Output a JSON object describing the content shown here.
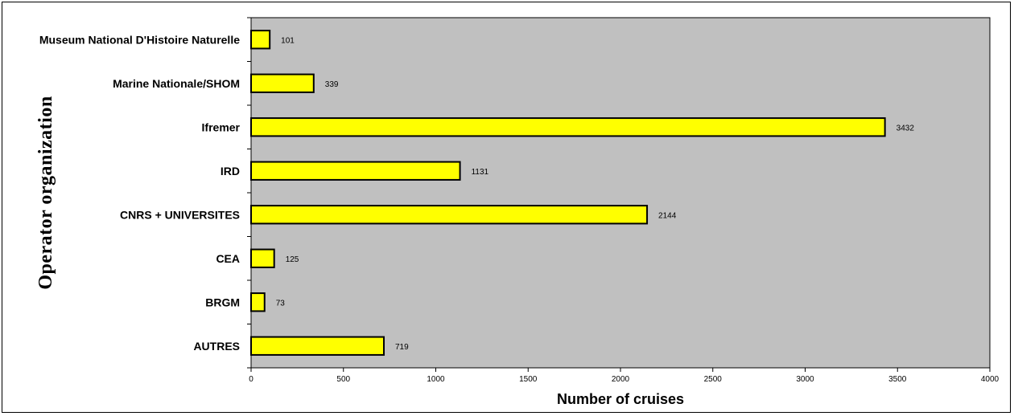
{
  "chart_data": {
    "type": "bar",
    "orientation": "horizontal",
    "categories": [
      "Museum National D'Histoire Naturelle",
      "Marine Nationale/SHOM",
      "Ifremer",
      "IRD",
      "CNRS + UNIVERSITES",
      "CEA",
      "BRGM",
      "AUTRES"
    ],
    "values": [
      101,
      339,
      3432,
      1131,
      2144,
      125,
      73,
      719
    ],
    "xlabel": "Number of cruises",
    "ylabel": "Operator organization",
    "xlim": [
      0,
      4000
    ],
    "xticks": [
      0,
      500,
      1000,
      1500,
      2000,
      2500,
      3000,
      3500,
      4000
    ],
    "grid": false,
    "colors": {
      "bar_fill": "#ffff00",
      "bar_stroke": "#000000",
      "plot_background": "#c0c0c0"
    }
  }
}
